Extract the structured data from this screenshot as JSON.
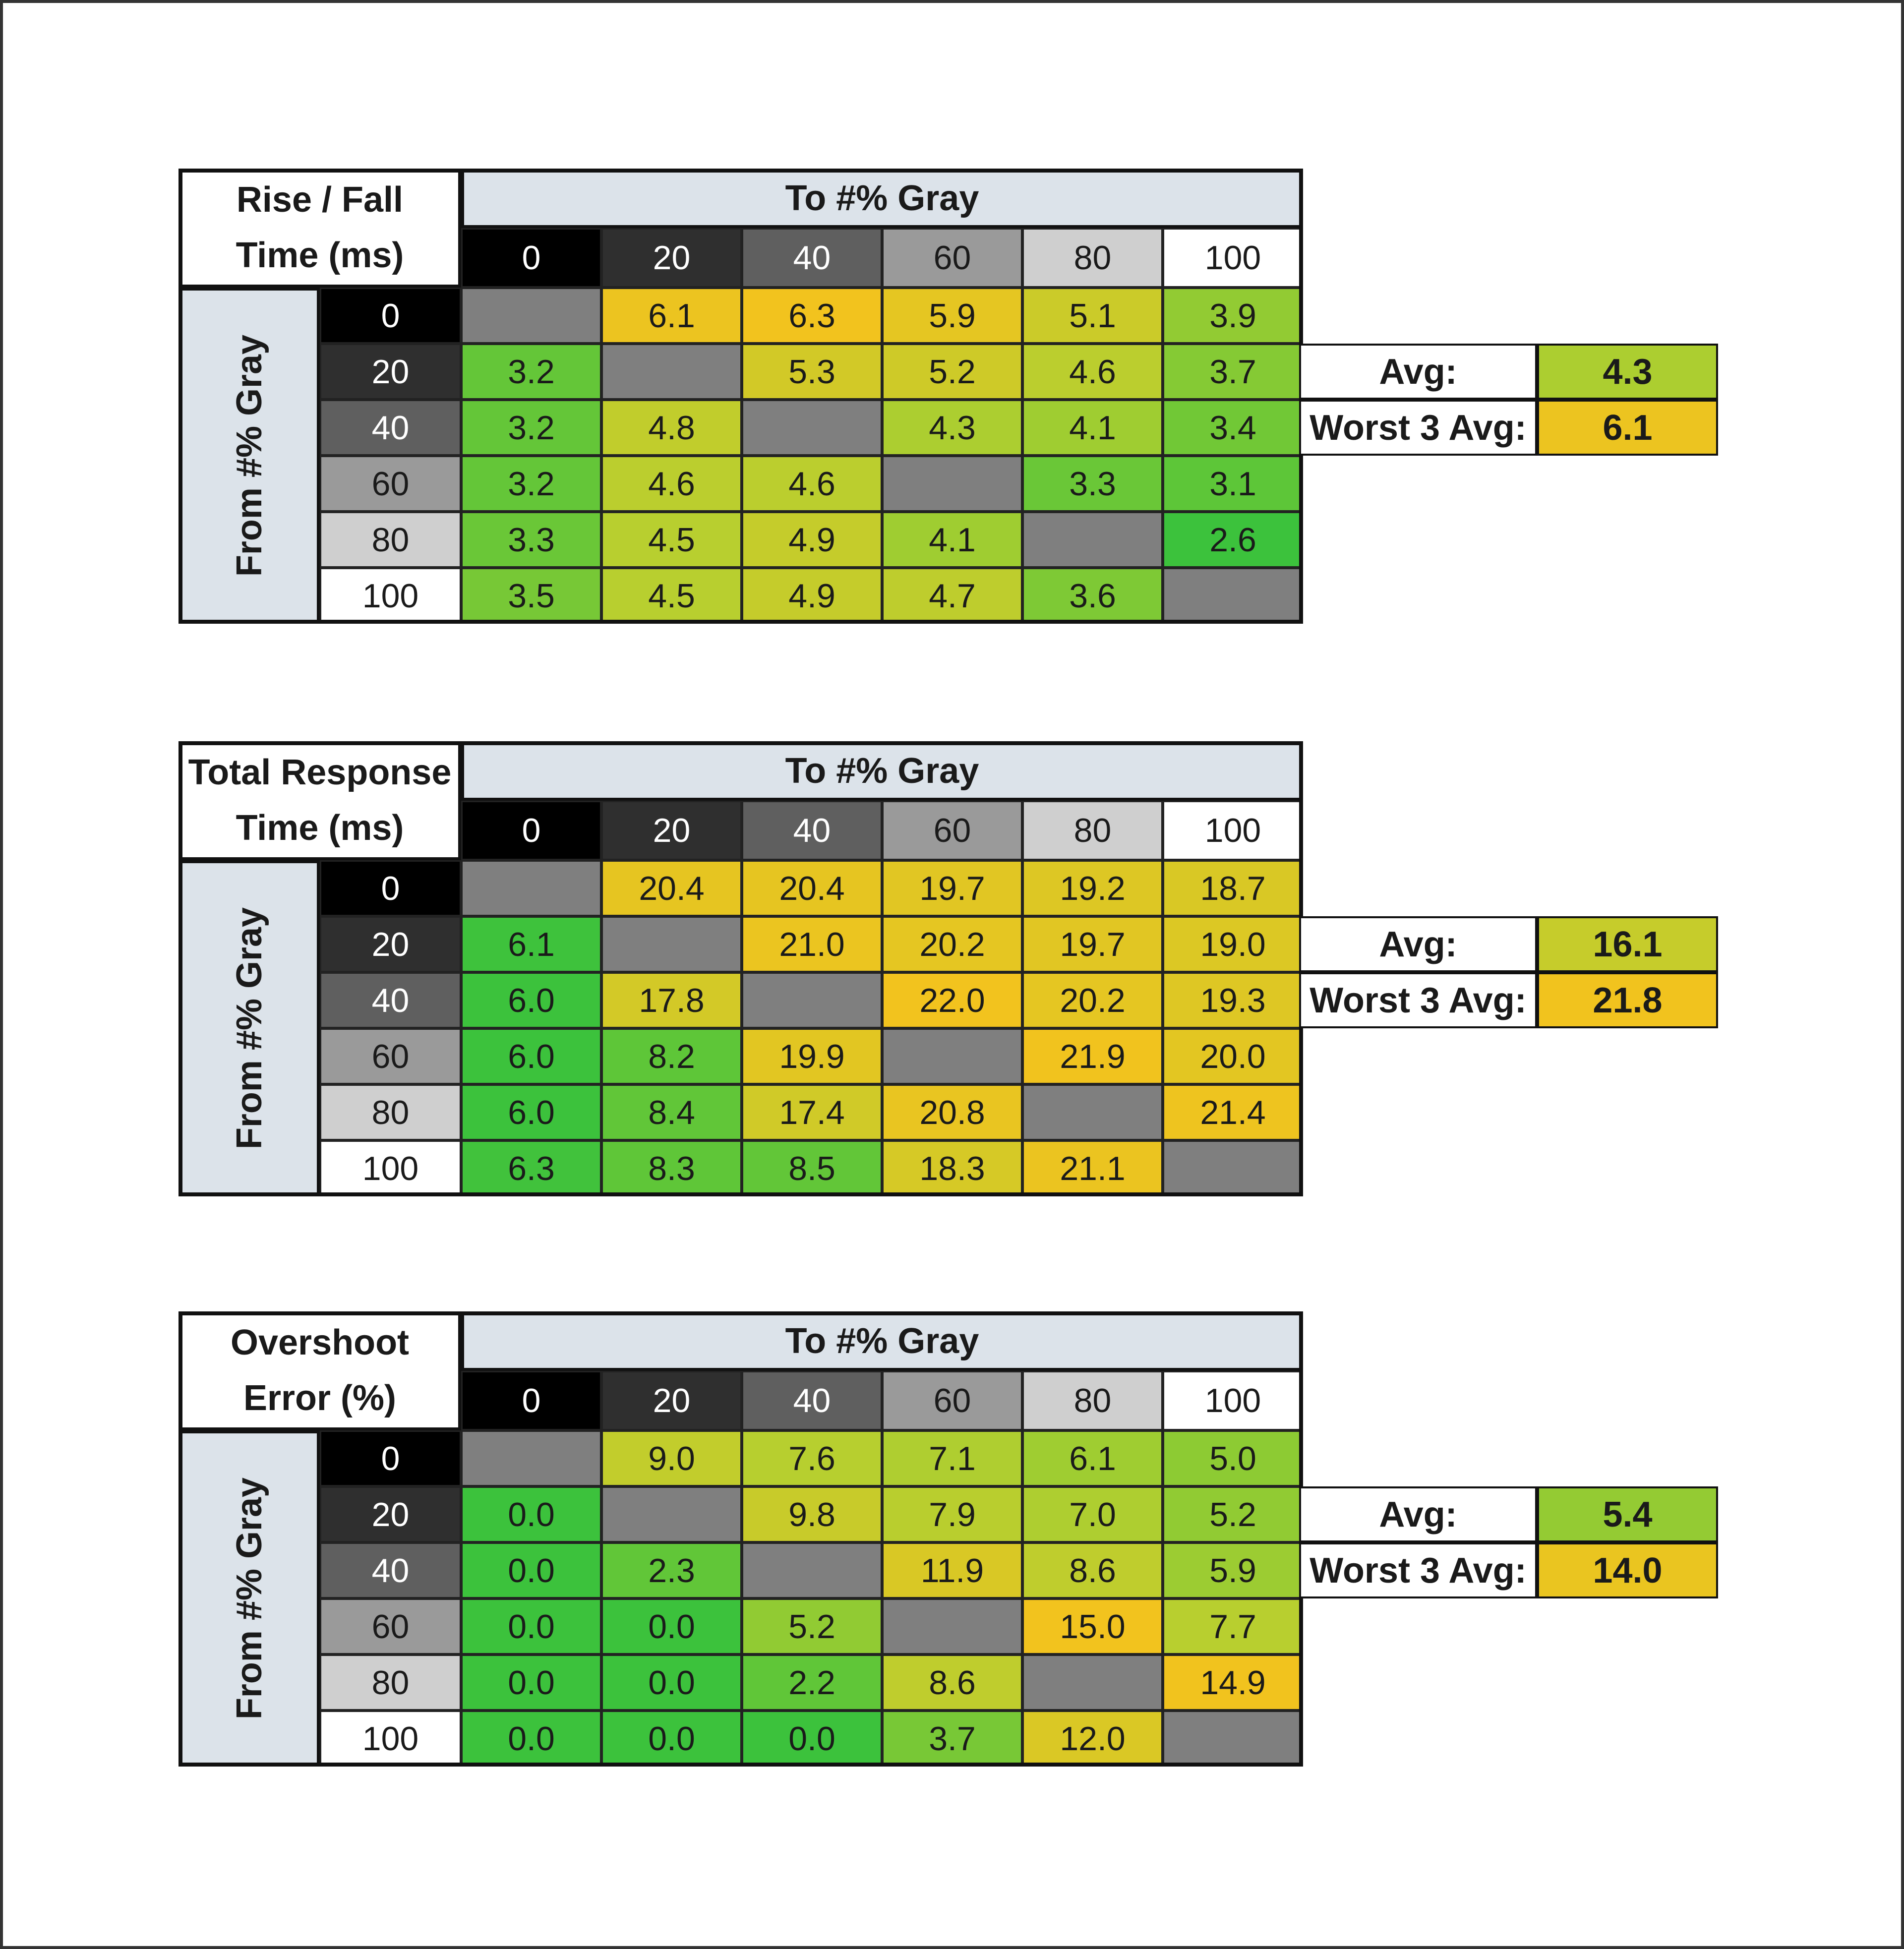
{
  "chart_data": [
    {
      "type": "table",
      "title_lines": [
        "Rise / Fall",
        "Time (ms)"
      ],
      "column_header": "To #% Gray",
      "row_header": "From #% Gray",
      "levels": [
        "0",
        "20",
        "40",
        "60",
        "80",
        "100"
      ],
      "values": [
        [
          null,
          6.1,
          6.3,
          5.9,
          5.1,
          3.9
        ],
        [
          3.2,
          null,
          5.3,
          5.2,
          4.6,
          3.7
        ],
        [
          3.2,
          4.8,
          null,
          4.3,
          4.1,
          3.4
        ],
        [
          3.2,
          4.6,
          4.6,
          null,
          3.3,
          3.1
        ],
        [
          3.3,
          4.5,
          4.9,
          4.1,
          null,
          2.6
        ],
        [
          3.5,
          4.5,
          4.9,
          4.7,
          3.6,
          null
        ]
      ],
      "stats": [
        {
          "label": "Avg:",
          "value": "4.3"
        },
        {
          "label": "Worst 3 Avg:",
          "value": "6.1"
        }
      ]
    },
    {
      "type": "table",
      "title_lines": [
        "Total Response",
        "Time (ms)"
      ],
      "column_header": "To #% Gray",
      "row_header": "From #% Gray",
      "levels": [
        "0",
        "20",
        "40",
        "60",
        "80",
        "100"
      ],
      "values": [
        [
          null,
          20.4,
          20.4,
          19.7,
          19.2,
          18.7
        ],
        [
          6.1,
          null,
          21.0,
          20.2,
          19.7,
          19.0
        ],
        [
          6.0,
          17.8,
          null,
          22.0,
          20.2,
          19.3
        ],
        [
          6.0,
          8.2,
          19.9,
          null,
          21.9,
          20.0
        ],
        [
          6.0,
          8.4,
          17.4,
          20.8,
          null,
          21.4
        ],
        [
          6.3,
          8.3,
          8.5,
          18.3,
          21.1,
          null
        ]
      ],
      "stats": [
        {
          "label": "Avg:",
          "value": "16.1"
        },
        {
          "label": "Worst 3 Avg:",
          "value": "21.8"
        }
      ]
    },
    {
      "type": "table",
      "title_lines": [
        "Overshoot",
        "Error (%)"
      ],
      "column_header": "To #% Gray",
      "row_header": "From #% Gray",
      "levels": [
        "0",
        "20",
        "40",
        "60",
        "80",
        "100"
      ],
      "values": [
        [
          null,
          9.0,
          7.6,
          7.1,
          6.1,
          5.0
        ],
        [
          0.0,
          null,
          9.8,
          7.9,
          7.0,
          5.2
        ],
        [
          0.0,
          2.3,
          null,
          11.9,
          8.6,
          5.9
        ],
        [
          0.0,
          0.0,
          5.2,
          null,
          15.0,
          7.7
        ],
        [
          0.0,
          0.0,
          2.2,
          8.6,
          null,
          14.9
        ],
        [
          0.0,
          0.0,
          0.0,
          3.7,
          12.0,
          null
        ]
      ],
      "stats": [
        {
          "label": "Avg:",
          "value": "5.4"
        },
        {
          "label": "Worst 3 Avg:",
          "value": "14.0"
        }
      ]
    }
  ],
  "colors": {
    "level_backgrounds": [
      "#000000",
      "#2f2f2f",
      "#5f5f5f",
      "#9a9a9a",
      "#cfcfcf",
      "#ffffff"
    ],
    "level_text": [
      "#ffffff",
      "#ffffff",
      "#ffffff",
      "#1a1a1a",
      "#1a1a1a",
      "#1a1a1a"
    ],
    "diagonal": "#7f7f7f",
    "header_fill": "#dce3ea",
    "scale_low": "#3cc23c",
    "scale_mid": "#b6cf2f",
    "scale_high": "#f2c31e"
  }
}
